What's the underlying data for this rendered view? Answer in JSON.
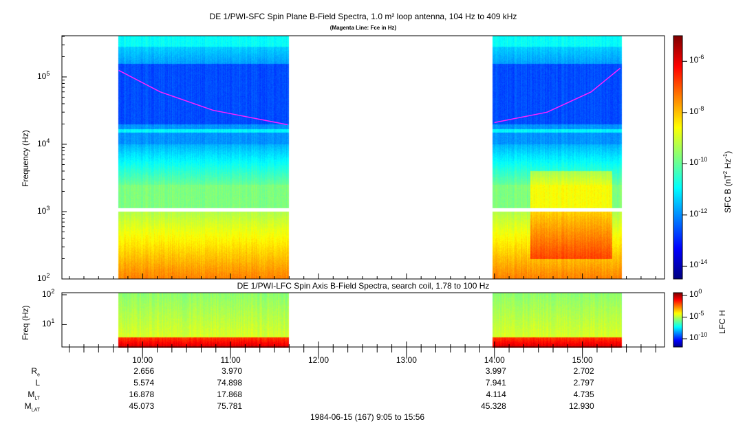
{
  "chart_data": [
    {
      "type": "heatmap",
      "title": "DE 1/PWI-SFC  Spin Plane B-Field Spectra, 1.0 m² loop antenna, 104 Hz to 409 kHz",
      "subtitle": "(Magenta Line: Fce in Hz)",
      "ylabel": "Frequency (Hz)",
      "yscale": "log",
      "ylim": [
        100,
        409000
      ],
      "yticks": [
        {
          "v": 100,
          "label": "10",
          "exp": "2"
        },
        {
          "v": 1000,
          "label": "10",
          "exp": "3"
        },
        {
          "v": 10000,
          "label": "10",
          "exp": "4"
        },
        {
          "v": 100000,
          "label": "10",
          "exp": "5"
        }
      ],
      "data_intervals_hours": [
        [
          9.725,
          11.667
        ],
        [
          13.975,
          15.445
        ]
      ],
      "fce_line": [
        {
          "t": 9.73,
          "f": 125000
        },
        {
          "t": 10.2,
          "f": 60000
        },
        {
          "t": 10.8,
          "f": 32000
        },
        {
          "t": 11.65,
          "f": 19500
        },
        {
          "t": 14.0,
          "f": 21000
        },
        {
          "t": 14.6,
          "f": 30000
        },
        {
          "t": 15.1,
          "f": 60000
        },
        {
          "t": 15.43,
          "f": 135000
        }
      ],
      "colorbar": {
        "label": "SFC B (nT",
        "label2": "2",
        "label3": " Hz",
        "label4": "-1",
        "label5": ")",
        "scale": "log",
        "range": [
          3e-15,
          1e-05
        ],
        "ticks": [
          {
            "label": "10",
            "exp": "-6",
            "v": -6
          },
          {
            "label": "10",
            "exp": "-8",
            "v": -8
          },
          {
            "label": "10",
            "exp": "-10",
            "v": -10
          },
          {
            "label": "10",
            "exp": "-12",
            "v": -12
          },
          {
            "label": "10",
            "exp": "-14",
            "v": -14
          }
        ]
      }
    },
    {
      "type": "heatmap",
      "title": "DE 1/PWI-LFC  Spin Axis B-Field Spectra, search coil, 1.78 to 100 Hz",
      "ylabel": "Freq (Hz)",
      "yscale": "log",
      "ylim": [
        1.78,
        100
      ],
      "yticks": [
        {
          "v": 10,
          "label": "10",
          "exp": "1"
        },
        {
          "v": 100,
          "label": "10",
          "exp": "2"
        }
      ],
      "data_intervals_hours": [
        [
          9.725,
          11.667
        ],
        [
          13.975,
          15.445
        ]
      ],
      "colorbar": {
        "label": "LFC H",
        "ticks": [
          {
            "label": "10",
            "exp": "0",
            "v": 0
          },
          {
            "label": "10",
            "exp": "-5",
            "v": -5
          },
          {
            "label": "10",
            "exp": "-10",
            "v": -10
          }
        ],
        "range": [
          -12,
          0
        ]
      }
    }
  ],
  "xaxis": {
    "range_hours": [
      9.0833,
      15.9333
    ],
    "ticks": [
      {
        "h": 10,
        "label": "10:00"
      },
      {
        "h": 11,
        "label": "11:00"
      },
      {
        "h": 12,
        "label": "12:00"
      },
      {
        "h": 13,
        "label": "13:00"
      },
      {
        "h": 14,
        "label": "14:00"
      },
      {
        "h": 15,
        "label": "15:00"
      }
    ]
  },
  "ephemeris": {
    "rows": [
      {
        "label": "R",
        "sub": "e",
        "values": [
          "2.656",
          "3.970",
          "",
          "",
          "3.997",
          "2.702"
        ]
      },
      {
        "label": "L",
        "sub": "",
        "values": [
          "5.574",
          "74.898",
          "",
          "",
          "7.941",
          "2.797"
        ]
      },
      {
        "label": "M",
        "sub": "LT",
        "values": [
          "16.878",
          "17.868",
          "",
          "",
          "4.114",
          "4.735"
        ]
      },
      {
        "label": "M",
        "sub": "LAT",
        "values": [
          "45.073",
          "75.781",
          "",
          "",
          "45.328",
          "12.930"
        ]
      }
    ]
  },
  "footer": "1984-06-15 (167) 9:05 to 15:56"
}
